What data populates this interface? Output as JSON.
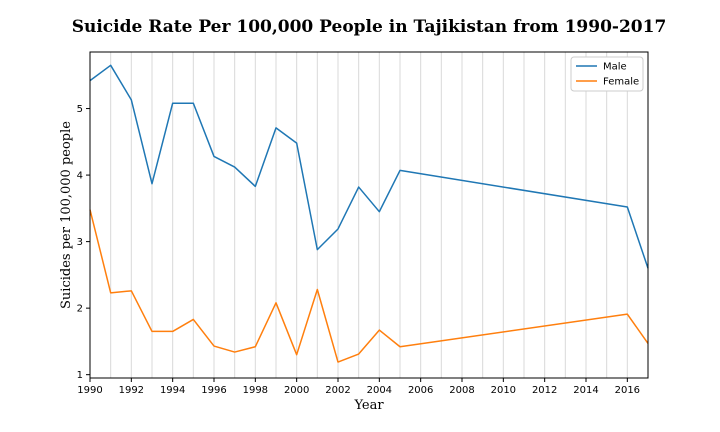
{
  "chart_data": {
    "type": "line",
    "title": "Suicide Rate Per 100,000 People in Tajikistan from 1990-2017",
    "xlabel": "Year",
    "ylabel": "Suicides per 100,000 people",
    "xlim": [
      1990,
      2017
    ],
    "ylim": [
      0.95,
      5.85
    ],
    "x_ticks": [
      1990,
      1992,
      1994,
      1996,
      1998,
      2000,
      2002,
      2004,
      2006,
      2008,
      2010,
      2012,
      2014,
      2016
    ],
    "y_ticks": [
      1,
      2,
      3,
      4,
      5
    ],
    "grid": "vertical",
    "legend_position": "top-right",
    "series": [
      {
        "name": "Male",
        "color": "#1f77b4",
        "x": [
          1990,
          1991,
          1992,
          1993,
          1994,
          1995,
          1996,
          1997,
          1998,
          1999,
          2000,
          2001,
          2002,
          2003,
          2004,
          2005,
          2016,
          2017
        ],
        "values": [
          5.42,
          5.65,
          5.13,
          3.87,
          5.08,
          5.08,
          4.28,
          4.12,
          3.83,
          4.71,
          4.48,
          2.88,
          3.19,
          3.82,
          3.45,
          4.07,
          3.52,
          2.6
        ]
      },
      {
        "name": "Female",
        "color": "#ff7f0e",
        "x": [
          1990,
          1991,
          1992,
          1993,
          1994,
          1995,
          1996,
          1997,
          1998,
          1999,
          2000,
          2001,
          2002,
          2003,
          2004,
          2005,
          2016,
          2017
        ],
        "values": [
          3.48,
          2.23,
          2.26,
          1.65,
          1.65,
          1.83,
          1.43,
          1.34,
          1.42,
          2.08,
          1.3,
          2.28,
          1.19,
          1.31,
          1.67,
          1.42,
          1.91,
          1.47
        ]
      }
    ]
  }
}
